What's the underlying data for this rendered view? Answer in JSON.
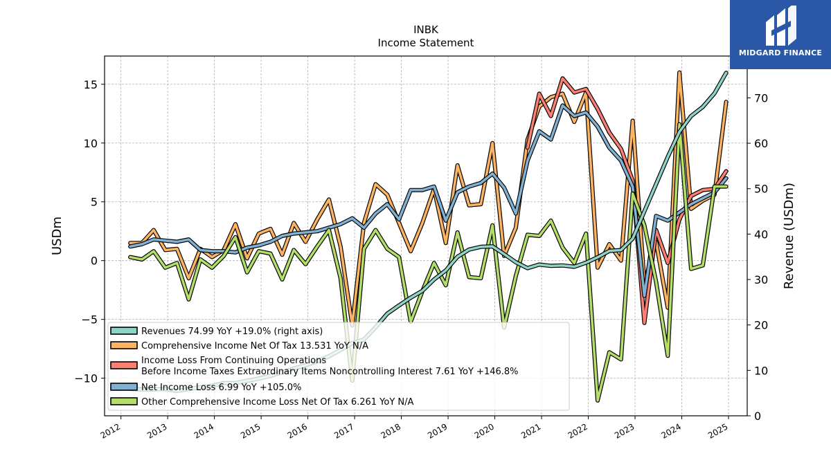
{
  "brand": {
    "name": "MIDGARD FINANCE",
    "mark": "logo-icon",
    "background": "#2b58a6"
  },
  "chart_data": {
    "type": "line",
    "title": "INBK",
    "subtitle": "Income Statement",
    "ylabel": "USDm",
    "y2label": "Revenue (USDm)",
    "ylim": [
      -13.2,
      17.4
    ],
    "y2lim": [
      0,
      79.2
    ],
    "yticks": [
      -10,
      -5,
      0,
      5,
      10,
      15
    ],
    "y2ticks": [
      0,
      10,
      20,
      30,
      40,
      50,
      60,
      70
    ],
    "xlim": [
      2011.65,
      2025.4
    ],
    "xticks": [
      2012,
      2013,
      2014,
      2015,
      2016,
      2017,
      2018,
      2019,
      2020,
      2021,
      2022,
      2023,
      2024,
      2025
    ],
    "grid": true,
    "legend_position": "lower-left",
    "series": [
      {
        "name": "Revenues  74.99 YoY +19.0% (right axis)",
        "axis": "right",
        "color": "#8dd3c7",
        "points": [
          [
            2012.2,
            5.9
          ],
          [
            2012.45,
            5.8
          ],
          [
            2012.7,
            5.8
          ],
          [
            2012.95,
            5.9
          ],
          [
            2013.2,
            5.5
          ],
          [
            2013.45,
            5.9
          ],
          [
            2013.7,
            6.3
          ],
          [
            2013.95,
            6.6
          ],
          [
            2014.2,
            7.2
          ],
          [
            2014.45,
            7.2
          ],
          [
            2014.7,
            7.7
          ],
          [
            2014.95,
            8.2
          ],
          [
            2015.2,
            8.8
          ],
          [
            2015.45,
            9.6
          ],
          [
            2015.7,
            10.4
          ],
          [
            2015.95,
            11.1
          ],
          [
            2016.2,
            12.0
          ],
          [
            2016.45,
            13.1
          ],
          [
            2016.7,
            14.5
          ],
          [
            2016.95,
            16.0
          ],
          [
            2017.2,
            16.8
          ],
          [
            2017.45,
            19.5
          ],
          [
            2017.7,
            22.5
          ],
          [
            2017.95,
            24.3
          ],
          [
            2018.2,
            26.0
          ],
          [
            2018.45,
            27.5
          ],
          [
            2018.7,
            30.0
          ],
          [
            2018.95,
            32.0
          ],
          [
            2019.2,
            35.0
          ],
          [
            2019.45,
            36.6
          ],
          [
            2019.7,
            37.2
          ],
          [
            2019.95,
            37.3
          ],
          [
            2020.2,
            35.6
          ],
          [
            2020.45,
            33.8
          ],
          [
            2020.7,
            32.5
          ],
          [
            2020.95,
            33.3
          ],
          [
            2021.2,
            33.0
          ],
          [
            2021.45,
            33.1
          ],
          [
            2021.7,
            32.8
          ],
          [
            2021.95,
            33.7
          ],
          [
            2022.2,
            34.9
          ],
          [
            2022.45,
            36.3
          ],
          [
            2022.7,
            36.5
          ],
          [
            2022.95,
            39.0
          ],
          [
            2023.2,
            45.0
          ],
          [
            2023.45,
            51.0
          ],
          [
            2023.7,
            57.0
          ],
          [
            2023.95,
            62.5
          ],
          [
            2024.2,
            66.0
          ],
          [
            2024.45,
            68.0
          ],
          [
            2024.7,
            71.0
          ],
          [
            2024.95,
            75.5
          ]
        ]
      },
      {
        "name": "Comprehensive Income Net Of Tax  13.531 YoY N/A",
        "axis": "left",
        "color": "#fdb462",
        "points": [
          [
            2012.2,
            1.5
          ],
          [
            2012.45,
            1.5
          ],
          [
            2012.7,
            2.6
          ],
          [
            2012.95,
            0.9
          ],
          [
            2013.2,
            1.0
          ],
          [
            2013.45,
            -1.5
          ],
          [
            2013.7,
            1.0
          ],
          [
            2013.95,
            0.3
          ],
          [
            2014.2,
            0.9
          ],
          [
            2014.45,
            3.1
          ],
          [
            2014.7,
            0.2
          ],
          [
            2014.95,
            2.3
          ],
          [
            2015.2,
            2.7
          ],
          [
            2015.45,
            0.5
          ],
          [
            2015.7,
            3.2
          ],
          [
            2015.95,
            1.6
          ],
          [
            2016.2,
            3.5
          ],
          [
            2016.45,
            5.2
          ],
          [
            2016.7,
            1.2
          ],
          [
            2016.95,
            -5.5
          ],
          [
            2017.2,
            3.2
          ],
          [
            2017.45,
            6.5
          ],
          [
            2017.7,
            5.6
          ],
          [
            2017.95,
            3.2
          ],
          [
            2018.2,
            0.8
          ],
          [
            2018.45,
            3.2
          ],
          [
            2018.7,
            6.1
          ],
          [
            2018.95,
            1.5
          ],
          [
            2019.2,
            8.1
          ],
          [
            2019.45,
            4.7
          ],
          [
            2019.7,
            4.8
          ],
          [
            2019.95,
            10.0
          ],
          [
            2020.2,
            0.4
          ],
          [
            2020.45,
            2.8
          ],
          [
            2020.7,
            10.3
          ],
          [
            2020.95,
            13.1
          ],
          [
            2021.2,
            13.9
          ],
          [
            2021.45,
            14.2
          ],
          [
            2021.7,
            11.8
          ],
          [
            2021.95,
            14.3
          ],
          [
            2022.2,
            -0.6
          ],
          [
            2022.45,
            1.4
          ],
          [
            2022.7,
            0.0
          ],
          [
            2022.95,
            11.9
          ],
          [
            2023.2,
            -1.9
          ],
          [
            2023.45,
            1.6
          ],
          [
            2023.7,
            -4.0
          ],
          [
            2023.95,
            16.0
          ],
          [
            2024.2,
            4.4
          ],
          [
            2024.45,
            5.1
          ],
          [
            2024.7,
            5.6
          ],
          [
            2024.95,
            13.5
          ]
        ]
      },
      {
        "name": "Income Loss From Continuing Operations\nBefore Income Taxes Extraordinary Items Noncontrolling Interest  7.61 YoY +146.8%",
        "axis": "left",
        "color": "#fb8072",
        "points": [
          [
            2020.7,
            9.6
          ],
          [
            2020.95,
            14.2
          ],
          [
            2021.2,
            12.3
          ],
          [
            2021.45,
            15.5
          ],
          [
            2021.7,
            14.3
          ],
          [
            2021.95,
            14.6
          ],
          [
            2022.2,
            12.9
          ],
          [
            2022.45,
            10.9
          ],
          [
            2022.7,
            9.5
          ],
          [
            2022.95,
            6.8
          ],
          [
            2023.2,
            -5.3
          ],
          [
            2023.45,
            2.6
          ],
          [
            2023.7,
            -0.2
          ],
          [
            2023.95,
            3.5
          ],
          [
            2024.2,
            5.5
          ],
          [
            2024.45,
            6.0
          ],
          [
            2024.7,
            6.1
          ],
          [
            2024.95,
            7.6
          ]
        ]
      },
      {
        "name": "Net Income Loss  6.99 YoY +105.0%",
        "axis": "left",
        "color": "#80b1d3",
        "points": [
          [
            2012.2,
            1.2
          ],
          [
            2012.45,
            1.4
          ],
          [
            2012.7,
            1.8
          ],
          [
            2012.95,
            1.7
          ],
          [
            2013.2,
            1.6
          ],
          [
            2013.45,
            1.8
          ],
          [
            2013.7,
            0.9
          ],
          [
            2013.95,
            0.8
          ],
          [
            2014.2,
            0.8
          ],
          [
            2014.45,
            0.7
          ],
          [
            2014.7,
            1.1
          ],
          [
            2014.95,
            1.3
          ],
          [
            2015.2,
            1.6
          ],
          [
            2015.45,
            2.1
          ],
          [
            2015.7,
            2.3
          ],
          [
            2015.95,
            2.4
          ],
          [
            2016.2,
            2.5
          ],
          [
            2016.45,
            2.8
          ],
          [
            2016.7,
            3.1
          ],
          [
            2016.95,
            3.6
          ],
          [
            2017.2,
            2.8
          ],
          [
            2017.45,
            4.0
          ],
          [
            2017.7,
            4.8
          ],
          [
            2017.95,
            3.5
          ],
          [
            2018.2,
            6.0
          ],
          [
            2018.45,
            6.0
          ],
          [
            2018.7,
            6.3
          ],
          [
            2018.95,
            3.4
          ],
          [
            2019.2,
            5.8
          ],
          [
            2019.45,
            6.3
          ],
          [
            2019.7,
            6.6
          ],
          [
            2019.95,
            7.4
          ],
          [
            2020.2,
            6.2
          ],
          [
            2020.45,
            4.0
          ],
          [
            2020.7,
            8.5
          ],
          [
            2020.95,
            11.0
          ],
          [
            2021.2,
            10.3
          ],
          [
            2021.45,
            13.2
          ],
          [
            2021.7,
            12.3
          ],
          [
            2021.95,
            12.6
          ],
          [
            2022.2,
            11.4
          ],
          [
            2022.45,
            9.6
          ],
          [
            2022.7,
            8.5
          ],
          [
            2022.95,
            6.3
          ],
          [
            2023.2,
            -3.0
          ],
          [
            2023.45,
            3.8
          ],
          [
            2023.7,
            3.4
          ],
          [
            2023.95,
            4.1
          ],
          [
            2024.2,
            4.8
          ],
          [
            2024.45,
            5.3
          ],
          [
            2024.7,
            5.8
          ],
          [
            2024.95,
            7.0
          ]
        ]
      },
      {
        "name": "Other Comprehensive Income Loss Net Of Tax  6.261 YoY N/A",
        "axis": "left",
        "color": "#b3de69",
        "points": [
          [
            2012.2,
            0.3
          ],
          [
            2012.45,
            0.1
          ],
          [
            2012.7,
            0.8
          ],
          [
            2012.95,
            -0.6
          ],
          [
            2013.2,
            -0.2
          ],
          [
            2013.45,
            -3.3
          ],
          [
            2013.7,
            0.1
          ],
          [
            2013.95,
            -0.6
          ],
          [
            2014.2,
            0.4
          ],
          [
            2014.45,
            2.0
          ],
          [
            2014.7,
            -1.0
          ],
          [
            2014.95,
            0.8
          ],
          [
            2015.2,
            0.6
          ],
          [
            2015.45,
            -1.6
          ],
          [
            2015.7,
            0.9
          ],
          [
            2015.95,
            -0.3
          ],
          [
            2016.2,
            1.2
          ],
          [
            2016.45,
            2.6
          ],
          [
            2016.7,
            -1.5
          ],
          [
            2016.95,
            -10.2
          ],
          [
            2017.2,
            1.0
          ],
          [
            2017.45,
            2.6
          ],
          [
            2017.7,
            1.0
          ],
          [
            2017.95,
            0.3
          ],
          [
            2018.2,
            -5.2
          ],
          [
            2018.45,
            -2.6
          ],
          [
            2018.7,
            -0.2
          ],
          [
            2018.95,
            -2.1
          ],
          [
            2019.2,
            2.4
          ],
          [
            2019.45,
            -1.4
          ],
          [
            2019.7,
            -1.5
          ],
          [
            2019.95,
            3.0
          ],
          [
            2020.2,
            -5.7
          ],
          [
            2020.45,
            -1.3
          ],
          [
            2020.7,
            2.2
          ],
          [
            2020.95,
            2.1
          ],
          [
            2021.2,
            3.4
          ],
          [
            2021.45,
            1.1
          ],
          [
            2021.7,
            -0.2
          ],
          [
            2021.95,
            2.3
          ],
          [
            2022.2,
            -11.9
          ],
          [
            2022.45,
            -7.8
          ],
          [
            2022.7,
            -8.4
          ],
          [
            2022.95,
            5.7
          ],
          [
            2023.2,
            3.0
          ],
          [
            2023.45,
            -1.8
          ],
          [
            2023.7,
            -8.1
          ],
          [
            2023.95,
            11.6
          ],
          [
            2024.2,
            -0.7
          ],
          [
            2024.45,
            -0.4
          ],
          [
            2024.7,
            6.3
          ],
          [
            2024.95,
            6.3
          ]
        ]
      }
    ]
  }
}
